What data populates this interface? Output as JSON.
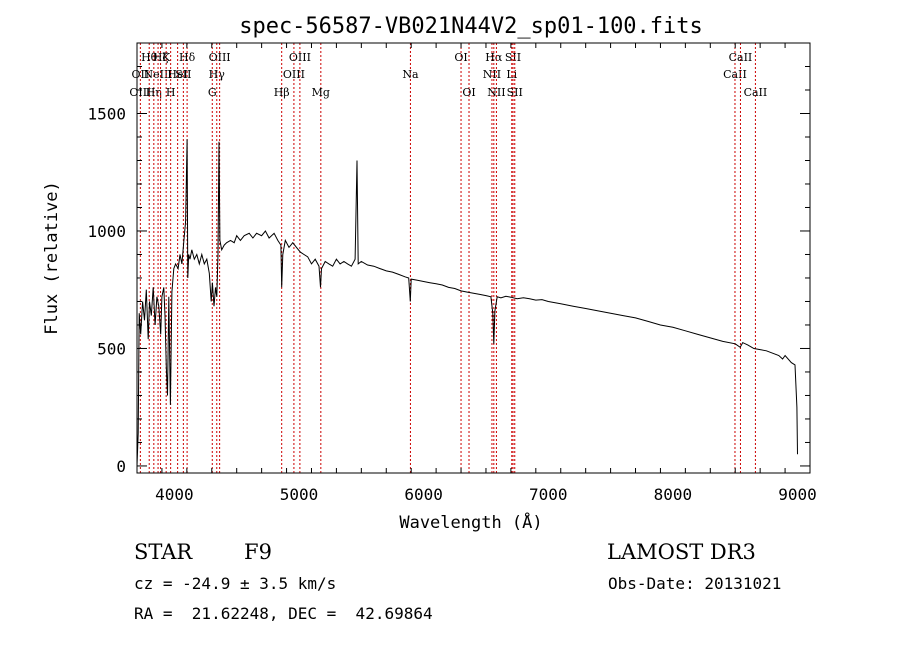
{
  "chart_data": {
    "type": "line",
    "title": "spec-56587-VB021N44V2_sp01-100.fits",
    "xlabel": "Wavelength (Å)",
    "ylabel": "Flux (relative)",
    "xlim": [
      3700,
      9100
    ],
    "ylim": [
      -30,
      1800
    ],
    "xticks": [
      4000,
      5000,
      6000,
      7000,
      8000,
      9000
    ],
    "yticks": [
      0,
      500,
      1000,
      1500
    ],
    "series": [
      {
        "name": "flux",
        "points": [
          [
            3700,
            0
          ],
          [
            3710,
            140
          ],
          [
            3718,
            650
          ],
          [
            3730,
            560
          ],
          [
            3745,
            700
          ],
          [
            3760,
            620
          ],
          [
            3775,
            750
          ],
          [
            3790,
            540
          ],
          [
            3800,
            700
          ],
          [
            3815,
            640
          ],
          [
            3830,
            760
          ],
          [
            3845,
            600
          ],
          [
            3860,
            720
          ],
          [
            3875,
            680
          ],
          [
            3890,
            560
          ],
          [
            3900,
            720
          ],
          [
            3915,
            760
          ],
          [
            3925,
            640
          ],
          [
            3935,
            420
          ],
          [
            3945,
            300
          ],
          [
            3955,
            720
          ],
          [
            3968,
            260
          ],
          [
            3980,
            740
          ],
          [
            3995,
            840
          ],
          [
            4010,
            860
          ],
          [
            4030,
            840
          ],
          [
            4045,
            900
          ],
          [
            4060,
            860
          ],
          [
            4075,
            950
          ],
          [
            4090,
            1040
          ],
          [
            4102,
            1390
          ],
          [
            4108,
            800
          ],
          [
            4115,
            900
          ],
          [
            4125,
            880
          ],
          [
            4140,
            920
          ],
          [
            4160,
            880
          ],
          [
            4180,
            900
          ],
          [
            4200,
            860
          ],
          [
            4220,
            900
          ],
          [
            4240,
            860
          ],
          [
            4260,
            880
          ],
          [
            4280,
            820
          ],
          [
            4295,
            700
          ],
          [
            4305,
            780
          ],
          [
            4318,
            680
          ],
          [
            4330,
            760
          ],
          [
            4340,
            720
          ],
          [
            4350,
            900
          ],
          [
            4358,
            1380
          ],
          [
            4365,
            960
          ],
          [
            4380,
            920
          ],
          [
            4400,
            940
          ],
          [
            4420,
            950
          ],
          [
            4450,
            960
          ],
          [
            4480,
            950
          ],
          [
            4500,
            980
          ],
          [
            4530,
            960
          ],
          [
            4560,
            980
          ],
          [
            4600,
            990
          ],
          [
            4630,
            970
          ],
          [
            4660,
            990
          ],
          [
            4700,
            980
          ],
          [
            4730,
            1000
          ],
          [
            4760,
            970
          ],
          [
            4800,
            990
          ],
          [
            4830,
            960
          ],
          [
            4855,
            940
          ],
          [
            4861,
            760
          ],
          [
            4870,
            900
          ],
          [
            4890,
            960
          ],
          [
            4920,
            930
          ],
          [
            4950,
            950
          ],
          [
            4980,
            930
          ],
          [
            5010,
            910
          ],
          [
            5040,
            900
          ],
          [
            5070,
            890
          ],
          [
            5100,
            860
          ],
          [
            5130,
            880
          ],
          [
            5160,
            850
          ],
          [
            5172,
            760
          ],
          [
            5180,
            840
          ],
          [
            5210,
            870
          ],
          [
            5240,
            860
          ],
          [
            5270,
            850
          ],
          [
            5300,
            880
          ],
          [
            5330,
            860
          ],
          [
            5360,
            870
          ],
          [
            5390,
            860
          ],
          [
            5420,
            850
          ],
          [
            5450,
            880
          ],
          [
            5465,
            1300
          ],
          [
            5475,
            860
          ],
          [
            5500,
            870
          ],
          [
            5550,
            855
          ],
          [
            5600,
            850
          ],
          [
            5650,
            840
          ],
          [
            5700,
            830
          ],
          [
            5750,
            825
          ],
          [
            5800,
            815
          ],
          [
            5850,
            805
          ],
          [
            5880,
            800
          ],
          [
            5893,
            700
          ],
          [
            5900,
            795
          ],
          [
            5950,
            790
          ],
          [
            6000,
            785
          ],
          [
            6050,
            780
          ],
          [
            6100,
            775
          ],
          [
            6150,
            770
          ],
          [
            6200,
            760
          ],
          [
            6250,
            755
          ],
          [
            6300,
            745
          ],
          [
            6350,
            740
          ],
          [
            6400,
            735
          ],
          [
            6450,
            730
          ],
          [
            6500,
            725
          ],
          [
            6540,
            720
          ],
          [
            6555,
            650
          ],
          [
            6563,
            520
          ],
          [
            6572,
            660
          ],
          [
            6590,
            720
          ],
          [
            6620,
            715
          ],
          [
            6660,
            722
          ],
          [
            6700,
            718
          ],
          [
            6750,
            712
          ],
          [
            6800,
            716
          ],
          [
            6850,
            712
          ],
          [
            6900,
            706
          ],
          [
            6950,
            708
          ],
          [
            7000,
            700
          ],
          [
            7100,
            690
          ],
          [
            7200,
            680
          ],
          [
            7300,
            670
          ],
          [
            7400,
            660
          ],
          [
            7500,
            650
          ],
          [
            7600,
            640
          ],
          [
            7700,
            630
          ],
          [
            7800,
            615
          ],
          [
            7900,
            600
          ],
          [
            8000,
            590
          ],
          [
            8100,
            575
          ],
          [
            8200,
            560
          ],
          [
            8300,
            545
          ],
          [
            8400,
            530
          ],
          [
            8500,
            520
          ],
          [
            8540,
            505
          ],
          [
            8560,
            525
          ],
          [
            8600,
            515
          ],
          [
            8650,
            500
          ],
          [
            8700,
            495
          ],
          [
            8750,
            490
          ],
          [
            8800,
            480
          ],
          [
            8850,
            470
          ],
          [
            8880,
            455
          ],
          [
            8900,
            470
          ],
          [
            8950,
            440
          ],
          [
            8980,
            430
          ],
          [
            8995,
            250
          ],
          [
            9000,
            50
          ]
        ]
      }
    ],
    "lines": [
      {
        "w": 3727,
        "labels": [
          {
            "t": "OII",
            "r": 2
          },
          {
            "t": "OIII",
            "r": 3
          }
        ]
      },
      {
        "w": 3798,
        "labels": [
          {
            "t": "Hθ",
            "r": 1
          }
        ]
      },
      {
        "w": 3835,
        "labels": [
          {
            "t": "Hη",
            "r": 3
          }
        ]
      },
      {
        "w": 3869,
        "labels": [
          {
            "t": "NeIII",
            "r": 2
          }
        ]
      },
      {
        "w": 3889,
        "labels": [
          {
            "t": "Hζ",
            "r": 1
          }
        ]
      },
      {
        "w": 3934,
        "labels": [
          {
            "t": "K",
            "r": 1
          }
        ]
      },
      {
        "w": 3970,
        "labels": [
          {
            "t": "H",
            "r": 3
          }
        ]
      },
      {
        "w": 4026,
        "labels": [
          {
            "t": "HeI",
            "r": 2
          }
        ]
      },
      {
        "w": 4072,
        "labels": [
          {
            "t": "SII",
            "r": 2
          }
        ]
      },
      {
        "w": 4102,
        "labels": [
          {
            "t": "Hδ",
            "r": 1
          }
        ]
      },
      {
        "w": 4304,
        "labels": [
          {
            "t": "G",
            "r": 3
          }
        ]
      },
      {
        "w": 4340,
        "labels": [
          {
            "t": "Hγ",
            "r": 2
          }
        ]
      },
      {
        "w": 4363,
        "labels": [
          {
            "t": "OIII",
            "r": 1
          }
        ]
      },
      {
        "w": 4861,
        "labels": [
          {
            "t": "Hβ",
            "r": 3
          }
        ]
      },
      {
        "w": 4959,
        "labels": [
          {
            "t": "OIII",
            "r": 2
          }
        ]
      },
      {
        "w": 5007,
        "labels": [
          {
            "t": "OIII",
            "r": 1
          }
        ]
      },
      {
        "w": 5175,
        "labels": [
          {
            "t": "Mg",
            "r": 3
          }
        ]
      },
      {
        "w": 5894,
        "labels": [
          {
            "t": "Na",
            "r": 2
          }
        ]
      },
      {
        "w": 6300,
        "labels": [
          {
            "t": "OI",
            "r": 1
          }
        ]
      },
      {
        "w": 6364,
        "labels": [
          {
            "t": "OI",
            "r": 3
          }
        ]
      },
      {
        "w": 6548,
        "labels": [
          {
            "t": "NII",
            "r": 2
          }
        ]
      },
      {
        "w": 6563,
        "labels": [
          {
            "t": "Hα",
            "r": 1
          }
        ]
      },
      {
        "w": 6584,
        "labels": [
          {
            "t": "NII",
            "r": 3
          }
        ]
      },
      {
        "w": 6707,
        "labels": [
          {
            "t": "Li",
            "r": 2
          }
        ]
      },
      {
        "w": 6717,
        "labels": [
          {
            "t": "SII",
            "r": 1
          }
        ]
      },
      {
        "w": 6731,
        "labels": [
          {
            "t": "SII",
            "r": 3
          }
        ]
      },
      {
        "w": 8498,
        "labels": [
          {
            "t": "CaII",
            "r": 2
          }
        ]
      },
      {
        "w": 8542,
        "labels": [
          {
            "t": "CaII",
            "r": 1
          }
        ]
      },
      {
        "w": 8662,
        "labels": [
          {
            "t": "CaII",
            "r": 3
          }
        ]
      }
    ],
    "colors": {
      "spectrum": "#000000",
      "line_marker": "#cc0000",
      "axes": "#000000"
    }
  },
  "info": {
    "class": "STAR",
    "subclass": "F9",
    "survey": "LAMOST DR3",
    "cz": "cz = -24.9 ± 3.5 km/s",
    "obs_date": "Obs-Date: 20131021",
    "coords": "RA =  21.62248, DEC =  42.69864"
  }
}
